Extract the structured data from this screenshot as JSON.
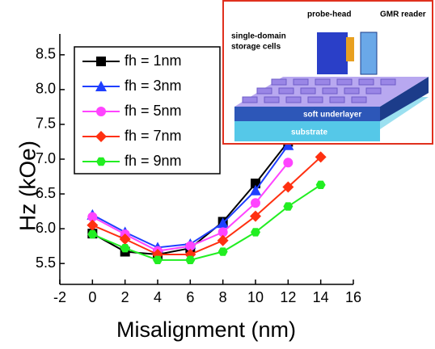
{
  "chart_data": {
    "type": "line",
    "x_label": "Misalignment (nm)",
    "y_label": "Hz (kOe)",
    "x": [
      0,
      2,
      4,
      6,
      8,
      10,
      12,
      14
    ],
    "series": [
      {
        "name": "fh = 1nm",
        "color": "#000000",
        "marker": "square",
        "values": [
          5.93,
          5.67,
          5.63,
          5.72,
          6.1,
          6.65,
          7.25,
          null
        ]
      },
      {
        "name": "fh = 3nm",
        "color": "#1f3fff",
        "marker": "triangle",
        "values": [
          6.2,
          5.95,
          5.73,
          5.78,
          6.08,
          6.55,
          7.2,
          null
        ]
      },
      {
        "name": "fh = 5nm",
        "color": "#ff44ff",
        "marker": "circle",
        "values": [
          6.17,
          5.92,
          5.68,
          5.75,
          5.95,
          6.37,
          6.95,
          null
        ]
      },
      {
        "name": "fh = 7nm",
        "color": "#ff3010",
        "marker": "diamond",
        "values": [
          6.05,
          5.85,
          5.63,
          5.63,
          5.83,
          6.18,
          6.6,
          7.03
        ]
      },
      {
        "name": "fh = 9nm",
        "color": "#22ee22",
        "marker": "hexagon",
        "values": [
          5.92,
          5.72,
          5.55,
          5.55,
          5.67,
          5.95,
          6.32,
          6.63
        ]
      }
    ],
    "xlim": [
      -2,
      16
    ],
    "xticks": [
      -2,
      0,
      2,
      4,
      6,
      8,
      10,
      12,
      14,
      16
    ],
    "ylim": [
      5.2,
      8.8
    ],
    "yticks": [
      5.5,
      6.0,
      6.5,
      7.0,
      7.5,
      8.0,
      8.5
    ],
    "legend": "upper left"
  },
  "inset": {
    "probe_head": "probe-head",
    "gmr_reader": "GMR reader",
    "storage_cells": [
      "single-domain",
      "storage cells"
    ],
    "soft_underlayer": "soft underlayer",
    "substrate": "substrate"
  }
}
